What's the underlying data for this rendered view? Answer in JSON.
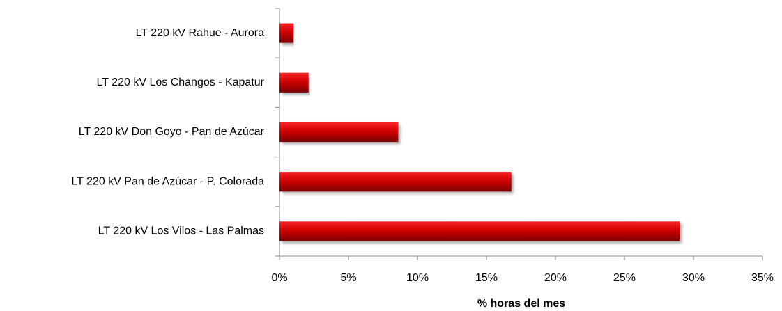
{
  "chart_data": {
    "type": "bar",
    "orientation": "horizontal",
    "x_label": "% horas del mes",
    "categories": [
      "LT 220 kV Rahue - Aurora",
      "LT 220 kV Los Changos - Kapatur",
      "LT 220 kV Don Goyo - Pan de Azúcar",
      "LT 220 kV Pan de Azúcar - P. Colorada",
      "LT 220 kV Los Vilos - Las Palmas"
    ],
    "values": [
      1.0,
      2.1,
      8.6,
      16.8,
      29.0
    ],
    "color": "#c00000",
    "xlim": [
      0,
      35
    ],
    "xticks": [
      {
        "value": 0,
        "label": "0%"
      },
      {
        "value": 5,
        "label": "5%"
      },
      {
        "value": 10,
        "label": "10%"
      },
      {
        "value": 15,
        "label": "15%"
      },
      {
        "value": 20,
        "label": "20%"
      },
      {
        "value": 25,
        "label": "25%"
      },
      {
        "value": 30,
        "label": "30%"
      },
      {
        "value": 35,
        "label": "35%"
      }
    ],
    "grid": false
  }
}
